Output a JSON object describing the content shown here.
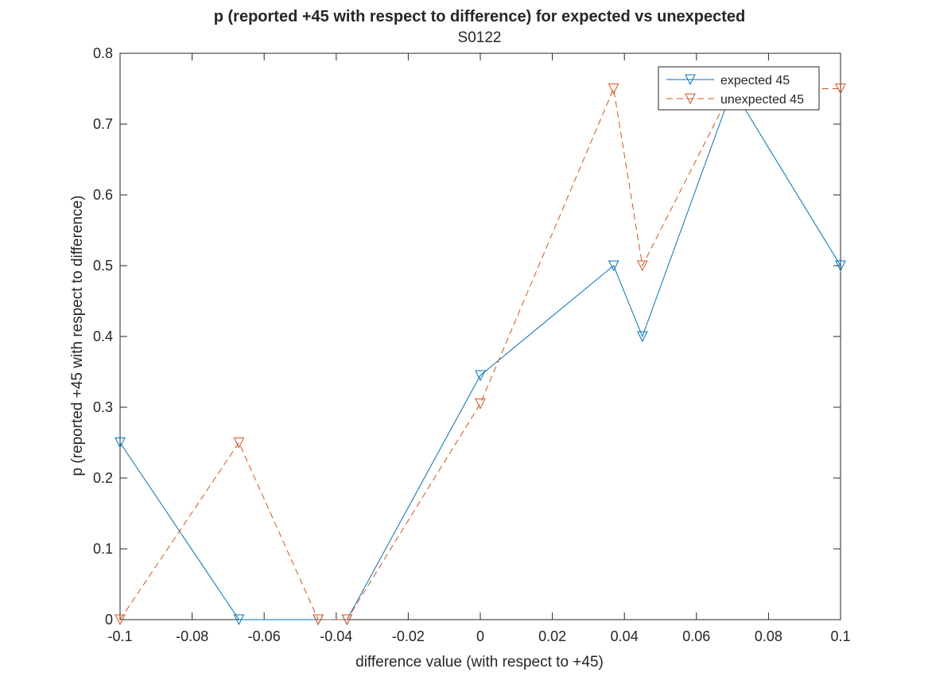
{
  "chart_data": {
    "type": "line",
    "title": "p  (reported +45 with respect to difference) for expected vs unexpected",
    "subtitle": "S0122",
    "xlabel": "difference value (with respect to +45)",
    "ylabel": "p (reported +45 with respect to difference)",
    "xlim": [
      -0.1,
      0.1
    ],
    "ylim": [
      0,
      0.8
    ],
    "xticks": [
      -0.1,
      -0.08,
      -0.06,
      -0.04,
      -0.02,
      0,
      0.02,
      0.04,
      0.06,
      0.08,
      0.1
    ],
    "xtick_labels": [
      "-0.1",
      "-0.08",
      "-0.06",
      "-0.04",
      "-0.02",
      "0",
      "0.02",
      "0.04",
      "0.06",
      "0.08",
      "0.1"
    ],
    "yticks": [
      0,
      0.1,
      0.2,
      0.3,
      0.4,
      0.5,
      0.6,
      0.7,
      0.8
    ],
    "ytick_labels": [
      "0",
      "0.1",
      "0.2",
      "0.3",
      "0.4",
      "0.5",
      "0.6",
      "0.7",
      "0.8"
    ],
    "grid": false,
    "legend_position": "top-right",
    "series": [
      {
        "name": "expected 45",
        "color": "#0072BD",
        "line_style": "solid",
        "marker": "triangle-down",
        "x": [
          -0.1,
          -0.067,
          -0.045,
          -0.037,
          0,
          0.037,
          0.045,
          0.07,
          0.1
        ],
        "y": [
          0.25,
          0,
          0,
          0,
          0.345,
          0.5,
          0.4,
          0.75,
          0.5
        ]
      },
      {
        "name": "unexpected 45",
        "color": "#D95319",
        "line_style": "dashed",
        "marker": "triangle-down",
        "x": [
          -0.1,
          -0.067,
          -0.045,
          -0.037,
          0,
          0.037,
          0.045,
          0.07,
          0.1
        ],
        "y": [
          0,
          0.25,
          0,
          0,
          0.305,
          0.75,
          0.5,
          0.75,
          0.75
        ]
      }
    ]
  }
}
